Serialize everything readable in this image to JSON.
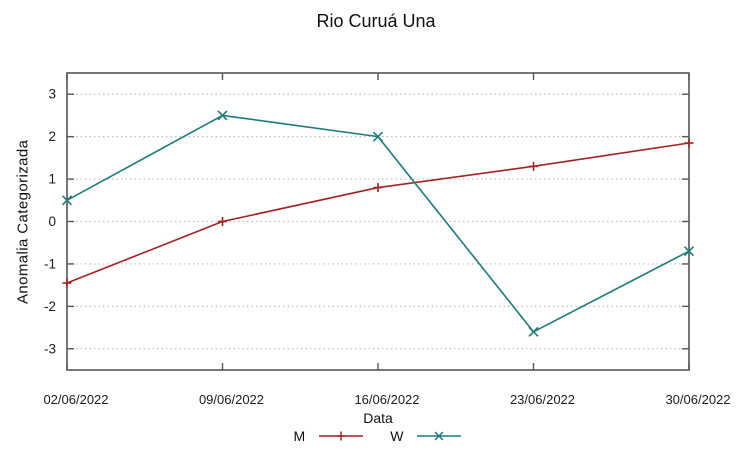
{
  "chart_data": {
    "type": "line",
    "title": "Rio Curuá Una",
    "xlabel": "Data",
    "ylabel": "Anomalia Categorizada",
    "categories": [
      "02/06/2022",
      "09/06/2022",
      "16/06/2022",
      "23/06/2022",
      "30/06/2022"
    ],
    "series": [
      {
        "name": "M",
        "marker": "plus",
        "color": "#a42222",
        "values": [
          -1.45,
          0.0,
          0.8,
          1.3,
          1.85
        ]
      },
      {
        "name": "W",
        "marker": "x",
        "color": "#1e7b7b",
        "values": [
          0.5,
          2.5,
          2.0,
          -2.6,
          -0.7
        ]
      }
    ],
    "ylim": [
      -3.5,
      3.5
    ],
    "yticks": [
      3,
      2,
      1,
      0,
      -1,
      -2,
      -3
    ],
    "grid": "horizontal-dotted",
    "legend_position": "bottom-center",
    "axis_color": "#555555",
    "grid_color": "#bdbdbd",
    "text_color": "#1c1c1c",
    "background": "#ffffff"
  }
}
